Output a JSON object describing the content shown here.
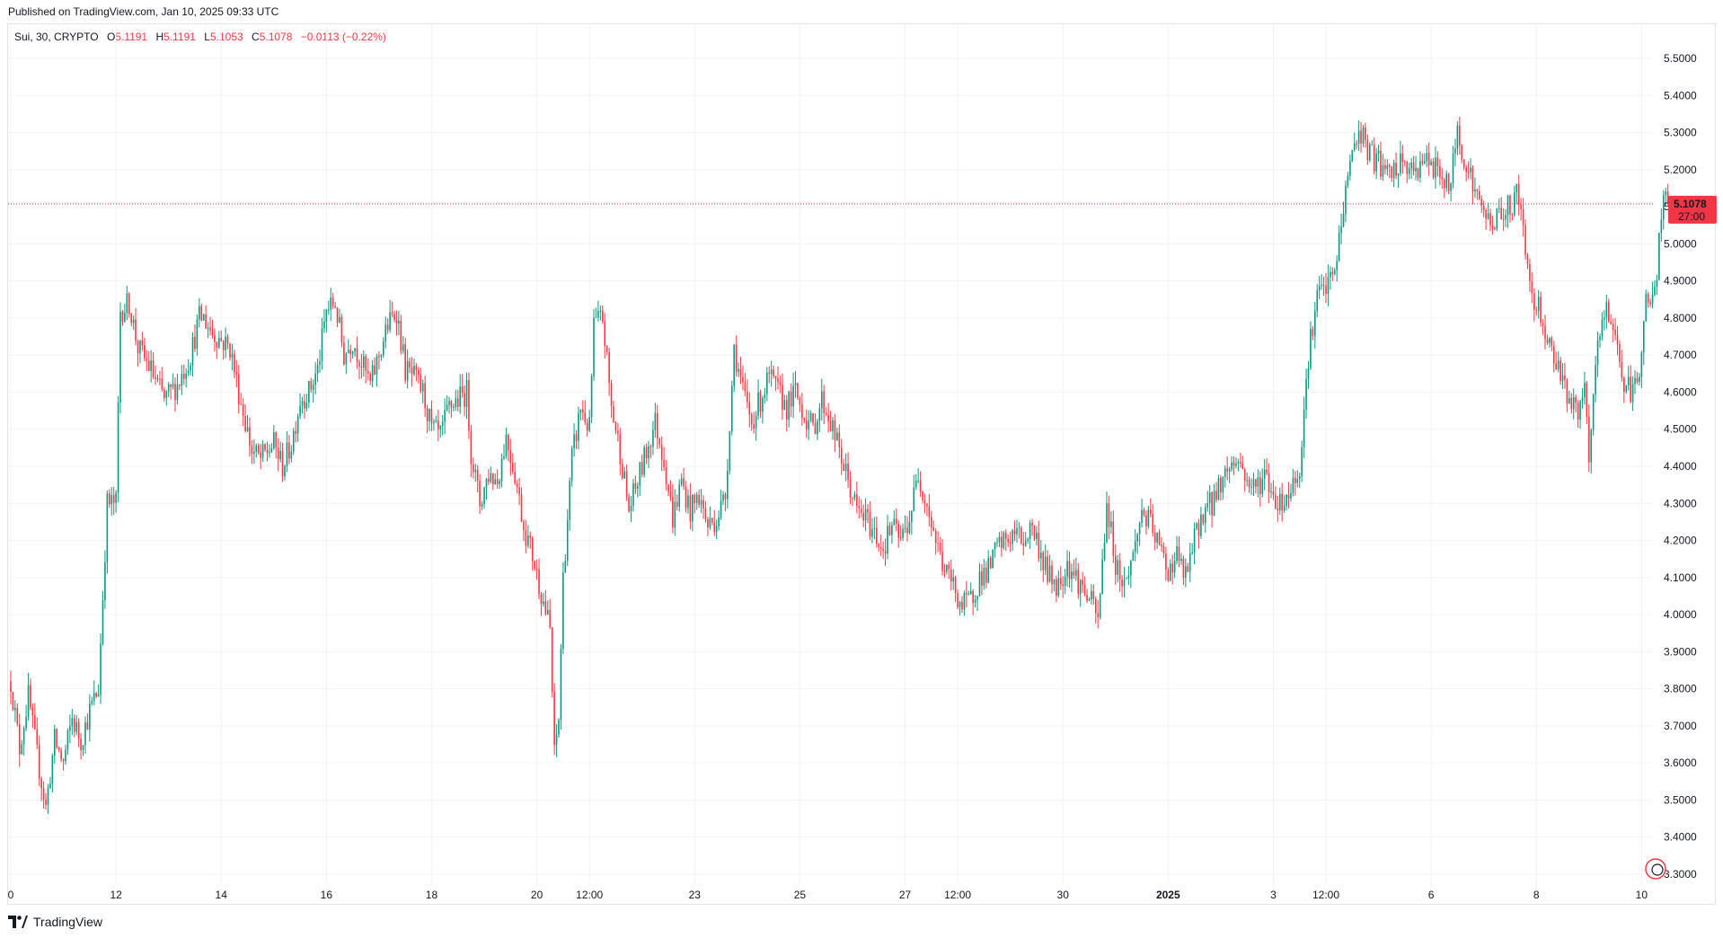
{
  "header": {
    "published": "Published on TradingView.com, Jan 10, 2025 09:33 UTC"
  },
  "legend": {
    "symbol": "Sui, 30, CRYPTO",
    "o_label": "O",
    "o_value": "5.1191",
    "h_label": "H",
    "h_value": "5.1191",
    "l_label": "L",
    "l_value": "5.1053",
    "c_label": "C",
    "c_value": "5.1078",
    "change": "−0.0113 (−0.22%)"
  },
  "price_badge": {
    "price": "5.1078",
    "countdown": "27:00"
  },
  "footer": {
    "brand": "TradingView"
  },
  "colors": {
    "up": "#089981",
    "down": "#f23645",
    "grid": "#f0f3fa",
    "badge": "#f23645"
  },
  "chart_data": {
    "type": "candlestick",
    "ylim": [
      3.27,
      5.57
    ],
    "y_ticks": [
      "3.3000",
      "3.4000",
      "3.5000",
      "3.6000",
      "3.7000",
      "3.8000",
      "3.9000",
      "4.0000",
      "4.1000",
      "4.2000",
      "4.3000",
      "4.4000",
      "4.5000",
      "4.6000",
      "4.7000",
      "4.8000",
      "4.9000",
      "5.0000",
      "5.1000",
      "5.2000",
      "5.3000",
      "5.4000",
      "5.5000"
    ],
    "x_ticks": [
      {
        "label": "0",
        "pos": 0
      },
      {
        "label": "12",
        "pos": 48
      },
      {
        "label": "14",
        "pos": 96
      },
      {
        "label": "16",
        "pos": 144
      },
      {
        "label": "18",
        "pos": 192
      },
      {
        "label": "20",
        "pos": 240
      },
      {
        "label": "12:00",
        "pos": 264
      },
      {
        "label": "23",
        "pos": 312
      },
      {
        "label": "25",
        "pos": 360
      },
      {
        "label": "27",
        "pos": 408
      },
      {
        "label": "12:00",
        "pos": 432
      },
      {
        "label": "30",
        "pos": 480
      },
      {
        "label": "2025",
        "pos": 528,
        "bold": true
      },
      {
        "label": "3",
        "pos": 576
      },
      {
        "label": "12:00",
        "pos": 600
      },
      {
        "label": "6",
        "pos": 648
      },
      {
        "label": "8",
        "pos": 696
      },
      {
        "label": "10",
        "pos": 744
      }
    ],
    "last_price": 5.1078,
    "bar_count": 756,
    "close_path": [
      [
        0,
        3.82
      ],
      [
        4,
        3.64
      ],
      [
        8,
        3.78
      ],
      [
        12,
        3.62
      ],
      [
        16,
        3.48
      ],
      [
        20,
        3.66
      ],
      [
        24,
        3.6
      ],
      [
        28,
        3.72
      ],
      [
        32,
        3.66
      ],
      [
        36,
        3.74
      ],
      [
        40,
        3.8
      ],
      [
        44,
        4.3
      ],
      [
        48,
        4.3
      ],
      [
        50,
        4.82
      ],
      [
        54,
        4.84
      ],
      [
        58,
        4.72
      ],
      [
        64,
        4.66
      ],
      [
        70,
        4.58
      ],
      [
        76,
        4.62
      ],
      [
        82,
        4.7
      ],
      [
        86,
        4.8
      ],
      [
        88,
        4.8
      ],
      [
        92,
        4.76
      ],
      [
        96,
        4.74
      ],
      [
        100,
        4.72
      ],
      [
        104,
        4.6
      ],
      [
        110,
        4.44
      ],
      [
        114,
        4.42
      ],
      [
        120,
        4.46
      ],
      [
        124,
        4.4
      ],
      [
        128,
        4.46
      ],
      [
        132,
        4.58
      ],
      [
        136,
        4.6
      ],
      [
        140,
        4.66
      ],
      [
        144,
        4.82
      ],
      [
        148,
        4.84
      ],
      [
        152,
        4.7
      ],
      [
        156,
        4.74
      ],
      [
        160,
        4.68
      ],
      [
        164,
        4.62
      ],
      [
        168,
        4.7
      ],
      [
        172,
        4.78
      ],
      [
        176,
        4.82
      ],
      [
        180,
        4.66
      ],
      [
        184,
        4.64
      ],
      [
        188,
        4.6
      ],
      [
        192,
        4.5
      ],
      [
        196,
        4.48
      ],
      [
        200,
        4.56
      ],
      [
        204,
        4.58
      ],
      [
        208,
        4.6
      ],
      [
        210,
        4.44
      ],
      [
        214,
        4.3
      ],
      [
        218,
        4.38
      ],
      [
        222,
        4.36
      ],
      [
        226,
        4.48
      ],
      [
        230,
        4.38
      ],
      [
        234,
        4.24
      ],
      [
        238,
        4.16
      ],
      [
        242,
        4.06
      ],
      [
        246,
        3.96
      ],
      [
        248,
        3.62
      ],
      [
        250,
        3.72
      ],
      [
        252,
        4.1
      ],
      [
        256,
        4.42
      ],
      [
        260,
        4.56
      ],
      [
        264,
        4.5
      ],
      [
        266,
        4.78
      ],
      [
        270,
        4.8
      ],
      [
        274,
        4.56
      ],
      [
        278,
        4.44
      ],
      [
        282,
        4.28
      ],
      [
        286,
        4.36
      ],
      [
        290,
        4.44
      ],
      [
        294,
        4.52
      ],
      [
        298,
        4.42
      ],
      [
        302,
        4.26
      ],
      [
        306,
        4.36
      ],
      [
        310,
        4.28
      ],
      [
        314,
        4.32
      ],
      [
        318,
        4.24
      ],
      [
        322,
        4.26
      ],
      [
        326,
        4.32
      ],
      [
        330,
        4.72
      ],
      [
        334,
        4.6
      ],
      [
        338,
        4.52
      ],
      [
        342,
        4.58
      ],
      [
        346,
        4.64
      ],
      [
        350,
        4.6
      ],
      [
        354,
        4.56
      ],
      [
        358,
        4.6
      ],
      [
        362,
        4.54
      ],
      [
        366,
        4.5
      ],
      [
        370,
        4.58
      ],
      [
        374,
        4.52
      ],
      [
        378,
        4.44
      ],
      [
        382,
        4.36
      ],
      [
        386,
        4.28
      ],
      [
        390,
        4.26
      ],
      [
        394,
        4.22
      ],
      [
        398,
        4.18
      ],
      [
        402,
        4.24
      ],
      [
        406,
        4.2
      ],
      [
        410,
        4.26
      ],
      [
        414,
        4.38
      ],
      [
        418,
        4.3
      ],
      [
        422,
        4.2
      ],
      [
        426,
        4.12
      ],
      [
        430,
        4.08
      ],
      [
        434,
        4.02
      ],
      [
        438,
        4.04
      ],
      [
        442,
        4.1
      ],
      [
        446,
        4.12
      ],
      [
        450,
        4.18
      ],
      [
        454,
        4.2
      ],
      [
        458,
        4.22
      ],
      [
        462,
        4.2
      ],
      [
        466,
        4.24
      ],
      [
        470,
        4.16
      ],
      [
        474,
        4.1
      ],
      [
        478,
        4.08
      ],
      [
        482,
        4.14
      ],
      [
        486,
        4.1
      ],
      [
        490,
        4.06
      ],
      [
        494,
        4.02
      ],
      [
        496,
        3.98
      ],
      [
        500,
        4.3
      ],
      [
        504,
        4.14
      ],
      [
        508,
        4.08
      ],
      [
        512,
        4.16
      ],
      [
        516,
        4.28
      ],
      [
        520,
        4.24
      ],
      [
        524,
        4.18
      ],
      [
        528,
        4.12
      ],
      [
        532,
        4.16
      ],
      [
        536,
        4.1
      ],
      [
        540,
        4.2
      ],
      [
        544,
        4.28
      ],
      [
        548,
        4.3
      ],
      [
        552,
        4.36
      ],
      [
        556,
        4.4
      ],
      [
        560,
        4.42
      ],
      [
        564,
        4.36
      ],
      [
        568,
        4.34
      ],
      [
        572,
        4.38
      ],
      [
        576,
        4.32
      ],
      [
        580,
        4.3
      ],
      [
        584,
        4.34
      ],
      [
        588,
        4.4
      ],
      [
        592,
        4.7
      ],
      [
        596,
        4.86
      ],
      [
        600,
        4.88
      ],
      [
        604,
        4.92
      ],
      [
        608,
        5.1
      ],
      [
        612,
        5.26
      ],
      [
        616,
        5.3
      ],
      [
        620,
        5.24
      ],
      [
        624,
        5.22
      ],
      [
        628,
        5.18
      ],
      [
        632,
        5.2
      ],
      [
        636,
        5.22
      ],
      [
        640,
        5.18
      ],
      [
        644,
        5.24
      ],
      [
        648,
        5.2
      ],
      [
        652,
        5.2
      ],
      [
        656,
        5.14
      ],
      [
        660,
        5.3
      ],
      [
        664,
        5.22
      ],
      [
        668,
        5.14
      ],
      [
        672,
        5.08
      ],
      [
        676,
        5.06
      ],
      [
        680,
        5.08
      ],
      [
        684,
        5.1
      ],
      [
        688,
        5.14
      ],
      [
        690,
        5.02
      ],
      [
        694,
        4.86
      ],
      [
        698,
        4.82
      ],
      [
        702,
        4.72
      ],
      [
        706,
        4.68
      ],
      [
        710,
        4.6
      ],
      [
        714,
        4.54
      ],
      [
        718,
        4.6
      ],
      [
        720,
        4.4
      ],
      [
        724,
        4.74
      ],
      [
        728,
        4.82
      ],
      [
        732,
        4.76
      ],
      [
        736,
        4.62
      ],
      [
        740,
        4.6
      ],
      [
        742,
        4.62
      ],
      [
        746,
        4.84
      ],
      [
        750,
        4.86
      ],
      [
        752,
        5.0
      ],
      [
        754,
        5.12
      ],
      [
        756,
        5.1078
      ]
    ]
  }
}
